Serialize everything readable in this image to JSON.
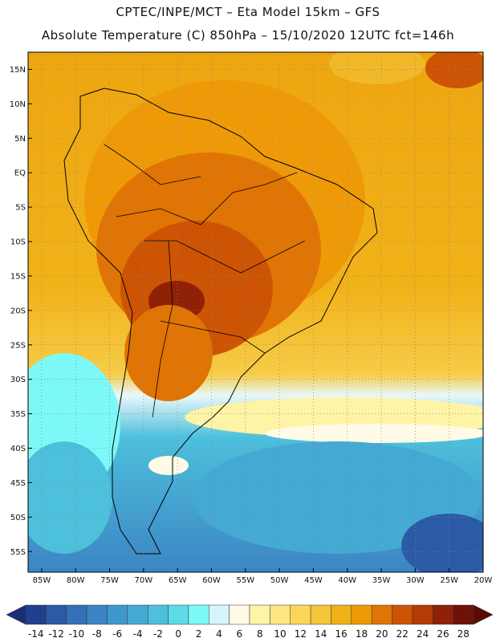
{
  "header": {
    "line1": "CPTEC/INPE/MCT –  Eta Model 15km – GFS",
    "line2": "Absolute Temperature (C) 850hPa – 15/10/2020 12UTC fct=146h"
  },
  "map": {
    "variable": "Absolute Temperature (C) 850hPa",
    "lat_labels": [
      "15N",
      "10N",
      "5N",
      "EQ",
      "5S",
      "10S",
      "15S",
      "20S",
      "25S",
      "30S",
      "35S",
      "40S",
      "45S",
      "50S",
      "55S"
    ],
    "lat_values": [
      15,
      10,
      5,
      0,
      -5,
      -10,
      -15,
      -20,
      -25,
      -30,
      -35,
      -40,
      -45,
      -50,
      -55
    ],
    "lon_labels": [
      "85W",
      "80W",
      "75W",
      "70W",
      "65W",
      "60W",
      "55W",
      "50W",
      "45W",
      "40W",
      "35W",
      "30W",
      "25W",
      "20W"
    ],
    "lon_values": [
      -85,
      -80,
      -75,
      -70,
      -65,
      -60,
      -55,
      -50,
      -45,
      -40,
      -35,
      -30,
      -25,
      -20
    ],
    "grid": "dotted"
  },
  "colorbar": {
    "labels": [
      "-14",
      "-12",
      "-10",
      "-8",
      "-6",
      "-4",
      "-2",
      "0",
      "2",
      "4",
      "6",
      "8",
      "10",
      "12",
      "14",
      "16",
      "18",
      "20",
      "22",
      "24",
      "26",
      "28"
    ],
    "colors": [
      "#1f3f8f",
      "#2b5aa6",
      "#3470b8",
      "#3b85c4",
      "#3f98cc",
      "#44aad4",
      "#4dc0dc",
      "#5ddbe8",
      "#7df8f8",
      "#d4f6fa",
      "#fffbe6",
      "#fff3a6",
      "#ffe680",
      "#f9d65a",
      "#f4c53a",
      "#f1b218",
      "#ee9a08",
      "#e07404",
      "#cd5404",
      "#b43a06",
      "#8f2106",
      "#6e1208"
    ],
    "extend": "both"
  }
}
